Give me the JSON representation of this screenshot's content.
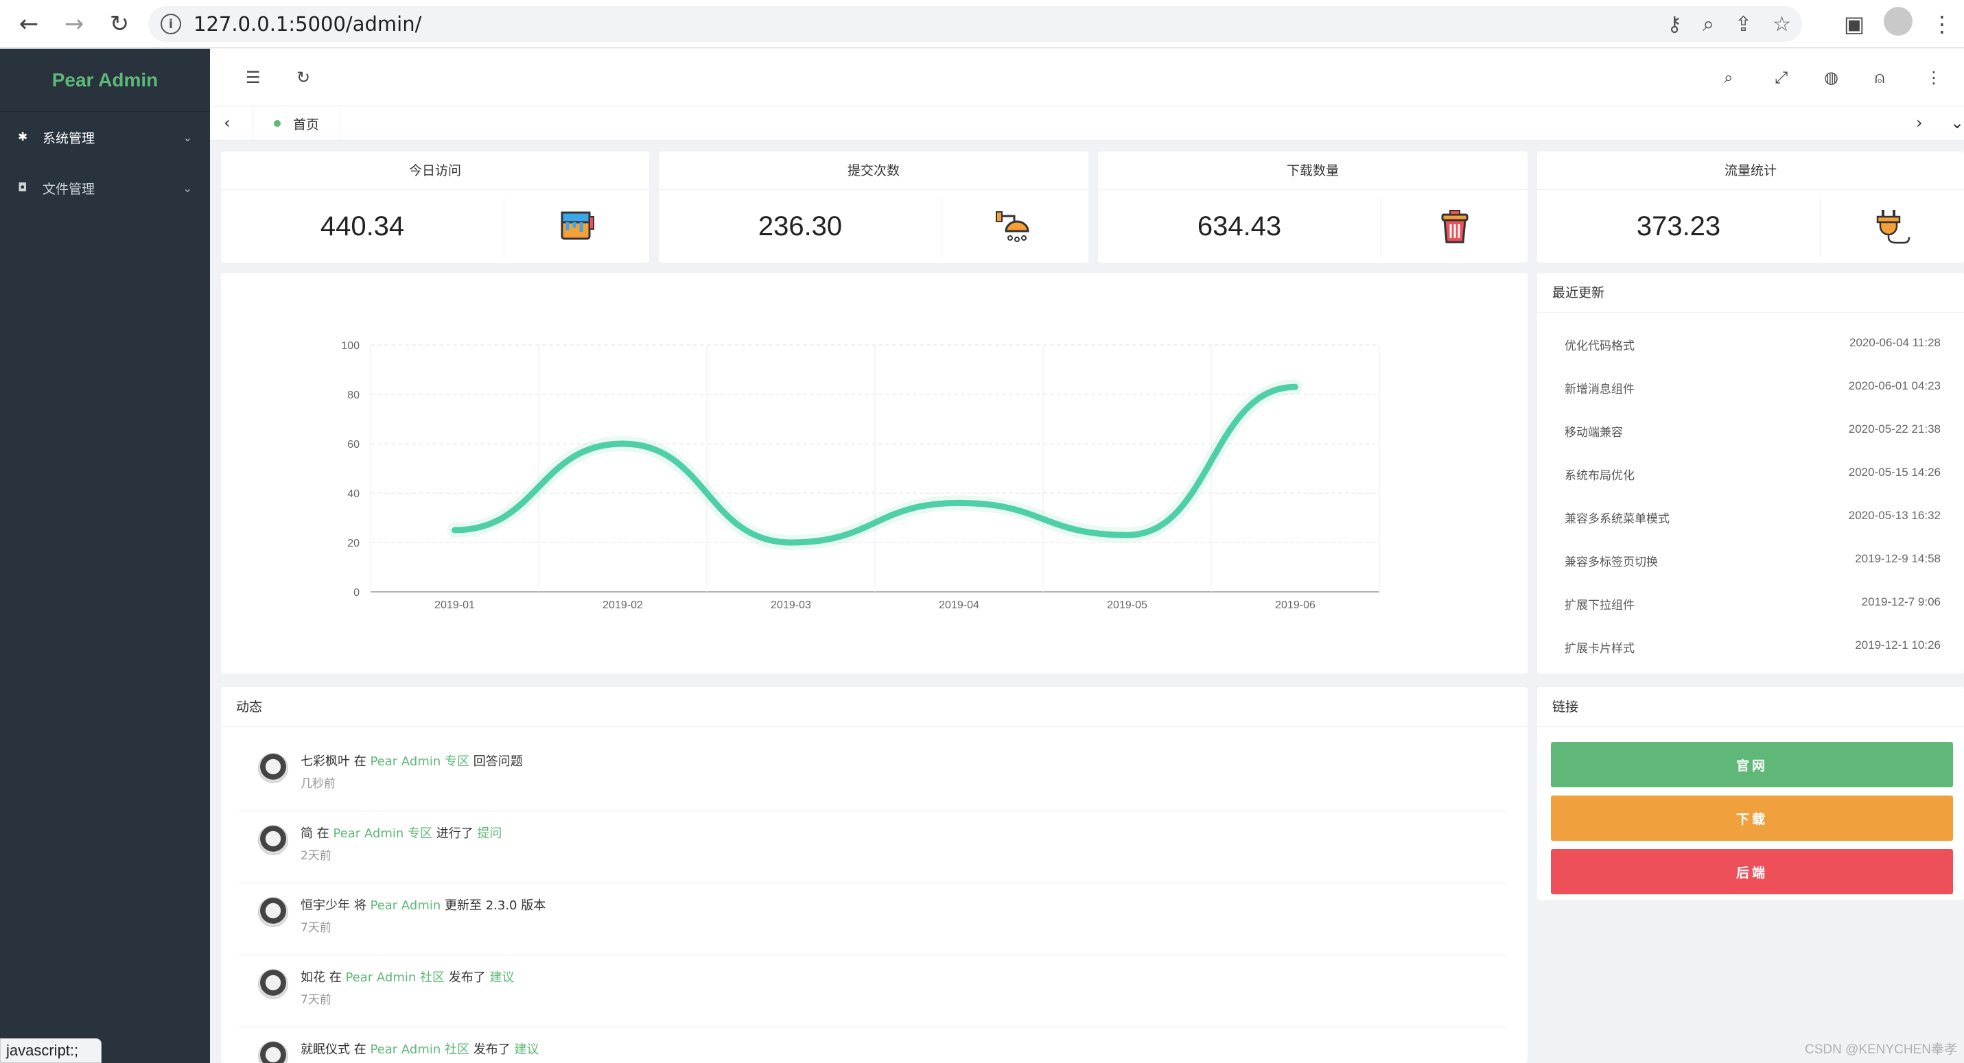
{
  "browser": {
    "url": "127.0.0.1:5000/admin/",
    "status_text": "javascript:;"
  },
  "sidebar": {
    "logo": "Pear Admin",
    "items": [
      {
        "label": "系统管理",
        "icon": "gear-icon"
      },
      {
        "label": "文件管理",
        "icon": "camera-icon"
      }
    ]
  },
  "tabs": {
    "home_label": "首页"
  },
  "stats": [
    {
      "title": "今日访问",
      "value": "440.34",
      "icon": "paint-bucket-icon"
    },
    {
      "title": "提交次数",
      "value": "236.30",
      "icon": "shower-icon"
    },
    {
      "title": "下载数量",
      "value": "634.43",
      "icon": "trash-bin-icon"
    },
    {
      "title": "流量统计",
      "value": "373.23",
      "icon": "plug-icon"
    }
  ],
  "chart_data": {
    "type": "line",
    "categories": [
      "2019-01",
      "2019-02",
      "2019-03",
      "2019-04",
      "2019-05",
      "2019-06"
    ],
    "series": [
      {
        "values": [
          25,
          60,
          20,
          36,
          23,
          83
        ]
      }
    ],
    "ylim": [
      0,
      100
    ],
    "yticks": [
      0,
      20,
      40,
      60,
      80,
      100
    ],
    "smooth": true,
    "line_color": "#4fcfa8",
    "grid": true
  },
  "updates": {
    "title": "最近更新",
    "items": [
      {
        "text": "优化代码格式",
        "date": "2020-06-04 11:28"
      },
      {
        "text": "新增消息组件",
        "date": "2020-06-01 04:23"
      },
      {
        "text": "移动端兼容",
        "date": "2020-05-22 21:38"
      },
      {
        "text": "系统布局优化",
        "date": "2020-05-15 14:26"
      },
      {
        "text": "兼容多系统菜单模式",
        "date": "2020-05-13 16:32"
      },
      {
        "text": "兼容多标签页切换",
        "date": "2019-12-9 14:58"
      },
      {
        "text": "扩展下拉组件",
        "date": "2019-12-7 9:06"
      },
      {
        "text": "扩展卡片样式",
        "date": "2019-12-1 10:26"
      }
    ]
  },
  "activity": {
    "title": "动态",
    "items": [
      {
        "user": "七彩枫叶",
        "p1": " 在 ",
        "link1": "Pear Admin 专区",
        "p2": " 回答问题",
        "link2": "",
        "time": "几秒前"
      },
      {
        "user": "简",
        "p1": " 在 ",
        "link1": "Pear Admin 专区",
        "p2": " 进行了 ",
        "link2": "提问",
        "time": "2天前"
      },
      {
        "user": "恒宇少年",
        "p1": " 将 ",
        "link1": "Pear Admin",
        "p2": " 更新至 2.3.0 版本",
        "link2": "",
        "time": "7天前"
      },
      {
        "user": "如花",
        "p1": " 在 ",
        "link1": "Pear Admin 社区",
        "p2": " 发布了 ",
        "link2": "建议",
        "time": "7天前"
      },
      {
        "user": "就眠仪式",
        "p1": " 在 ",
        "link1": "Pear Admin 社区",
        "p2": " 发布了 ",
        "link2": "建议",
        "time": ""
      }
    ]
  },
  "links": {
    "title": "链接",
    "buttons": [
      {
        "label": "官网",
        "color": "#5fb878"
      },
      {
        "label": "下载",
        "color": "#f0a03c"
      },
      {
        "label": "后端",
        "color": "#ee505a"
      }
    ]
  },
  "watermark": "CSDN @KENYCHEN奉孝"
}
